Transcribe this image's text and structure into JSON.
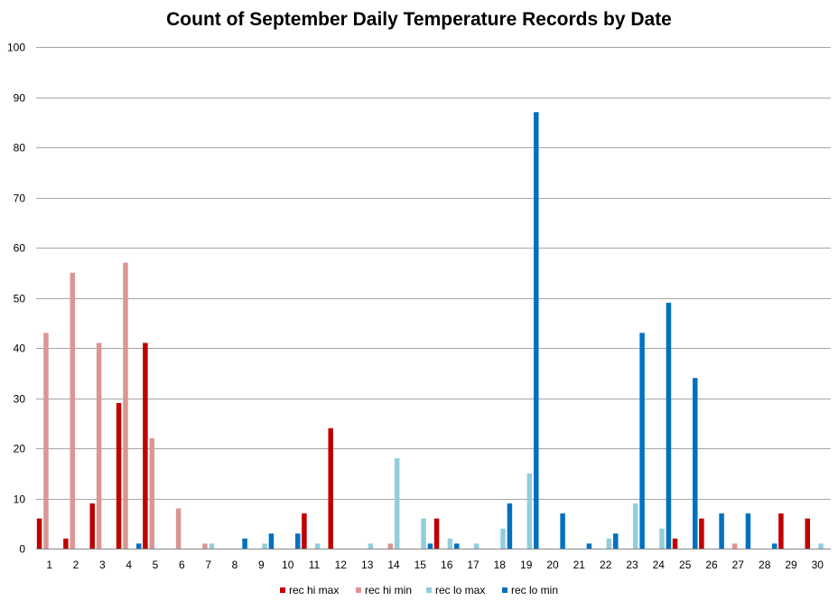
{
  "chart_data": {
    "type": "bar",
    "title": "Count of September Daily Temperature Records by Date",
    "xlabel": "",
    "ylabel": "",
    "ylim": [
      0,
      100
    ],
    "yticks": [
      0,
      10,
      20,
      30,
      40,
      50,
      60,
      70,
      80,
      90,
      100
    ],
    "grid": true,
    "legend_position": "bottom",
    "categories": [
      "1",
      "2",
      "3",
      "4",
      "5",
      "6",
      "7",
      "8",
      "9",
      "10",
      "11",
      "12",
      "13",
      "14",
      "15",
      "16",
      "17",
      "18",
      "19",
      "20",
      "21",
      "22",
      "23",
      "24",
      "25",
      "26",
      "27",
      "28",
      "29",
      "30"
    ],
    "series": [
      {
        "name": "rec hi max",
        "color": "#c00000",
        "values": [
          6,
          2,
          9,
          29,
          41,
          0,
          0,
          0,
          0,
          0,
          7,
          24,
          0,
          0,
          0,
          6,
          0,
          0,
          0,
          0,
          0,
          0,
          0,
          0,
          2,
          6,
          0,
          0,
          7,
          6
        ]
      },
      {
        "name": "rec hi min",
        "color": "#da9694",
        "values": [
          43,
          55,
          41,
          57,
          22,
          8,
          1,
          0,
          0,
          0,
          0,
          0,
          0,
          1,
          0,
          0,
          0,
          0,
          0,
          0,
          0,
          0,
          0,
          0,
          0,
          0,
          1,
          0,
          0,
          0
        ]
      },
      {
        "name": "rec lo max",
        "color": "#92cddc",
        "values": [
          0,
          0,
          0,
          0,
          0,
          0,
          1,
          0,
          1,
          0,
          1,
          0,
          1,
          18,
          6,
          2,
          1,
          4,
          15,
          0,
          0,
          2,
          9,
          4,
          0,
          0,
          0,
          0,
          0,
          1
        ]
      },
      {
        "name": "rec lo min",
        "color": "#0070c0",
        "values": [
          0,
          0,
          0,
          1,
          0,
          0,
          0,
          2,
          3,
          3,
          0,
          0,
          0,
          0,
          1,
          1,
          0,
          9,
          87,
          7,
          1,
          3,
          43,
          49,
          34,
          7,
          7,
          1,
          0,
          0
        ]
      }
    ]
  }
}
